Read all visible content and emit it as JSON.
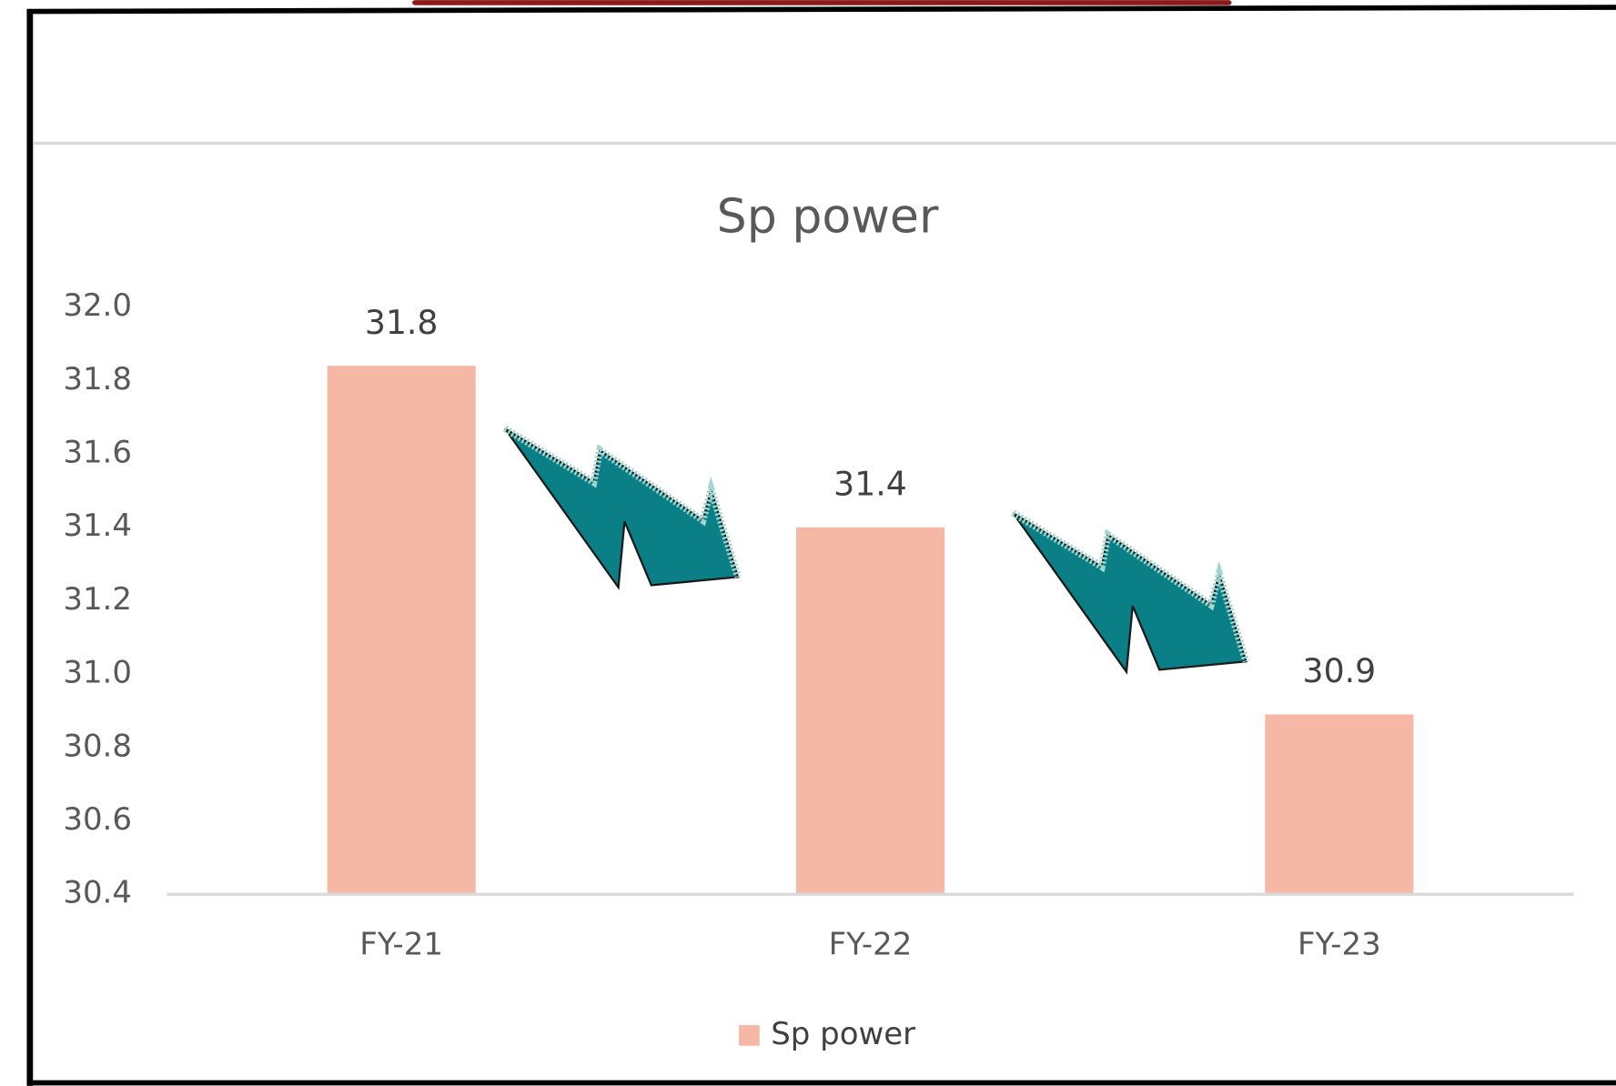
{
  "chart_data": {
    "type": "bar",
    "title": "Sp power",
    "categories": [
      "FY-21",
      "FY-22",
      "FY-23"
    ],
    "series": [
      {
        "name": "Sp power",
        "color": "#f4b8a4",
        "values": [
          31.84,
          31.4,
          30.89
        ],
        "value_labels": [
          "31.8",
          "31.4",
          "30.9"
        ]
      }
    ],
    "ylim": [
      30.4,
      32.0
    ],
    "yticks": [
      30.4,
      30.6,
      30.8,
      {
        "value": 31.0,
        "label": "31.0"
      },
      31.2,
      31.4,
      31.6,
      31.8,
      {
        "value": 32.0,
        "label": "32.0"
      }
    ],
    "legend": "bottom"
  }
}
